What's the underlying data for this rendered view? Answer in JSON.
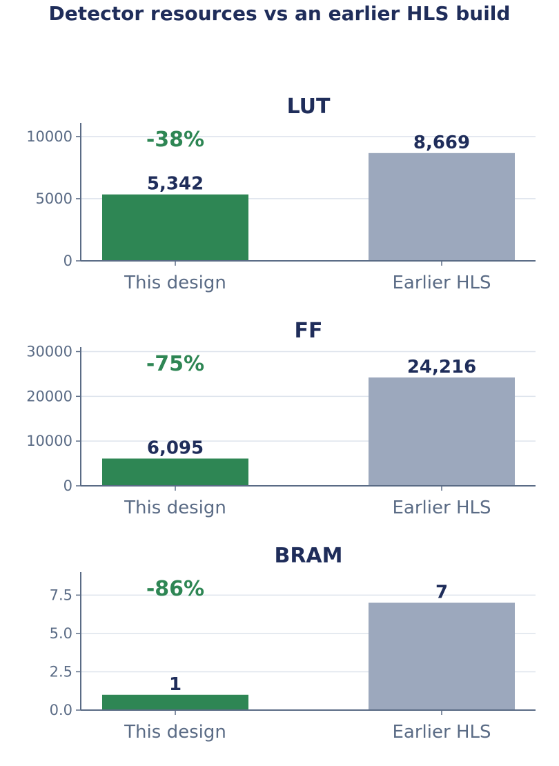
{
  "title": "Detector resources vs an earlier HLS build",
  "colors": {
    "this_design": "#2e8654",
    "earlier": "#9ca8bd",
    "delta": "#2e8654",
    "grid": "#dde3ec",
    "axis": "#5a6b85",
    "text": "#1f2d5a"
  },
  "chart_data": [
    {
      "type": "bar",
      "title": "LUT",
      "categories": [
        "This design",
        "Earlier HLS"
      ],
      "values": [
        5342,
        8669
      ],
      "value_labels": [
        "5,342",
        "8,669"
      ],
      "delta_label": "-38%",
      "ylim": [
        0,
        11100
      ],
      "yticks": [
        0,
        5000,
        10000
      ],
      "ytick_labels": [
        "0",
        "5000",
        "10000"
      ],
      "grid": true
    },
    {
      "type": "bar",
      "title": "FF",
      "categories": [
        "This design",
        "Earlier HLS"
      ],
      "values": [
        6095,
        24216
      ],
      "value_labels": [
        "6,095",
        "24,216"
      ],
      "delta_label": "-75%",
      "ylim": [
        0,
        31000
      ],
      "yticks": [
        0,
        10000,
        20000,
        30000
      ],
      "ytick_labels": [
        "0",
        "10000",
        "20000",
        "30000"
      ],
      "grid": true
    },
    {
      "type": "bar",
      "title": "BRAM",
      "categories": [
        "This design",
        "Earlier HLS"
      ],
      "values": [
        1,
        7
      ],
      "value_labels": [
        "1",
        "7"
      ],
      "delta_label": "-86%",
      "ylim": [
        0,
        9
      ],
      "yticks": [
        0,
        2.5,
        5,
        7.5
      ],
      "ytick_labels": [
        "0.0",
        "2.5",
        "5.0",
        "7.5"
      ],
      "grid": true
    }
  ]
}
